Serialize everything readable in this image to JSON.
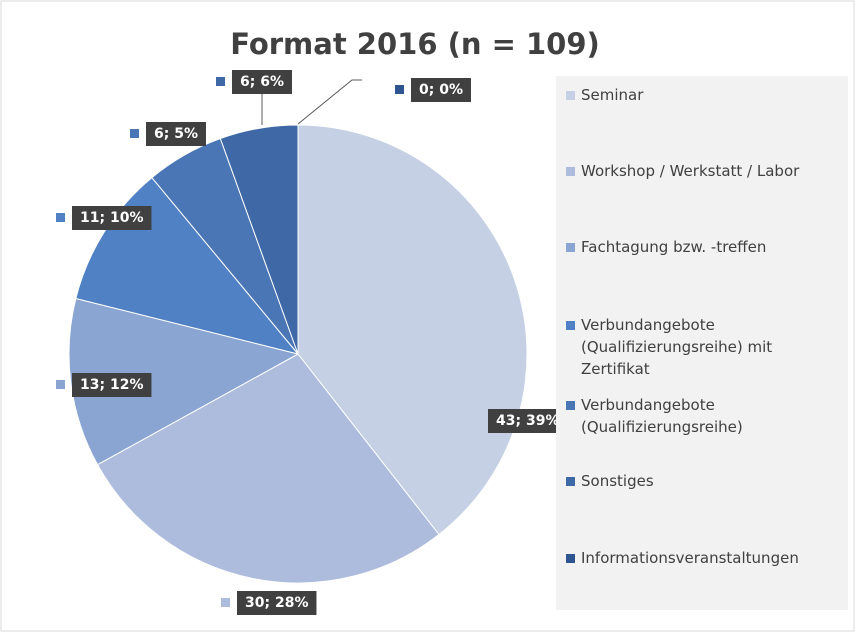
{
  "chart_data": {
    "type": "pie",
    "title": "Format 2016 (n = 109)",
    "categories": [
      "Seminar",
      "Workshop / Werkstatt / Labor",
      "Fachtagung bzw. -treffen",
      "Verbundangebote (Qualifizierungsreihe) mit Zertifikat",
      "Verbundangebote (Qualifizierungsreihe)",
      "Sonstiges",
      "Informationsveranstaltungen"
    ],
    "values": [
      43,
      30,
      13,
      11,
      6,
      6,
      0
    ],
    "value_labels": [
      "43; 39%",
      "30; 28%",
      "13; 12%",
      "11; 10%",
      "6; 5%",
      "6; 6%",
      "0; 0%"
    ],
    "colors": [
      "#c5d0e4",
      "#adbcdc",
      "#8aa5d2",
      "#4f81c4",
      "#4a76b5",
      "#3e69a6",
      "#2f5590"
    ]
  }
}
